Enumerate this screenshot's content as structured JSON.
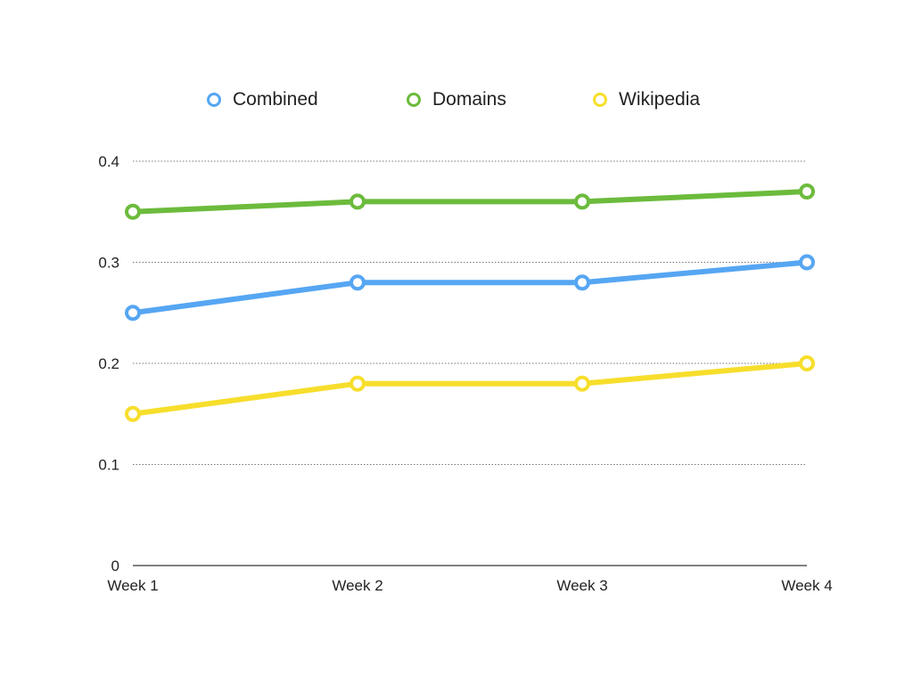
{
  "chart_data": {
    "type": "line",
    "categories": [
      "Week 1",
      "Week 2",
      "Week 3",
      "Week 4"
    ],
    "series": [
      {
        "name": "Combined",
        "color": "#56A6F3",
        "values": [
          0.25,
          0.28,
          0.28,
          0.3
        ]
      },
      {
        "name": "Domains",
        "color": "#6CBB3C",
        "values": [
          0.35,
          0.36,
          0.36,
          0.37
        ]
      },
      {
        "name": "Wikipedia",
        "color": "#F7DE2C",
        "values": [
          0.15,
          0.18,
          0.18,
          0.2
        ]
      }
    ],
    "yticks": [
      "0",
      "0.1",
      "0.2",
      "0.3",
      "0.4"
    ],
    "ylim": [
      0,
      0.4
    ],
    "grid": "horizontal-dotted",
    "legend_position": "top-center"
  }
}
